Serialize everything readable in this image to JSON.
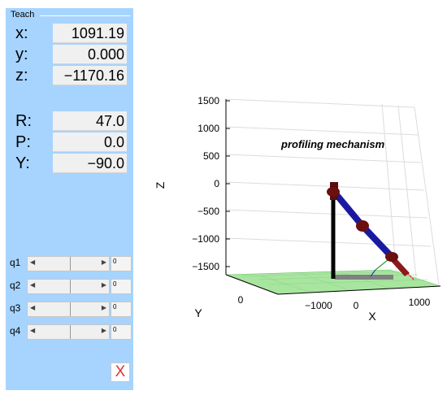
{
  "panel": {
    "title": "Teach",
    "position": [
      {
        "label": "x:",
        "value": "1091.19"
      },
      {
        "label": "y:",
        "value": "0.000"
      },
      {
        "label": "z:",
        "value": "−1170.16"
      }
    ],
    "orientation": [
      {
        "label": "R:",
        "value": "47.0"
      },
      {
        "label": "P:",
        "value": "0.0"
      },
      {
        "label": "Y:",
        "value": "−90.0"
      }
    ],
    "joints": [
      {
        "label": "q1",
        "value": "0"
      },
      {
        "label": "q2",
        "value": "0"
      },
      {
        "label": "q3",
        "value": "0"
      },
      {
        "label": "q4",
        "value": "0"
      }
    ],
    "close_label": "X"
  },
  "plot": {
    "annotation": "profiling mechanism",
    "z_axis": {
      "label": "Z",
      "ticks": [
        "1500",
        "1000",
        "500",
        "0",
        "−500",
        "−1000",
        "−1500"
      ]
    },
    "x_axis": {
      "label": "X",
      "ticks": [
        "−1000",
        "0",
        "1000"
      ]
    },
    "y_axis": {
      "label": "Y",
      "ticks": [
        "0"
      ]
    },
    "colors": {
      "floor": "#a8e6a0",
      "link": "#1a1aa0",
      "joint": "#6b0f0f",
      "column": "#000000",
      "base": "#808080"
    }
  }
}
